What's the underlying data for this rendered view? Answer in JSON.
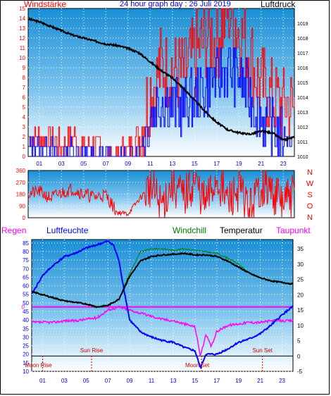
{
  "chart_data": [
    {
      "type": "line",
      "title": "24 hour graph day : 26 Juli 2019",
      "left_axis_label": "Windstärke",
      "right_axis_label": "Luftdruck",
      "x_ticks": [
        "01",
        "03",
        "05",
        "07",
        "09",
        "11",
        "13",
        "15",
        "17",
        "19",
        "21",
        "23"
      ],
      "left_ylim": [
        0,
        15
      ],
      "left_ticks": [
        0,
        1,
        2,
        3,
        4,
        5,
        6,
        7,
        8,
        9,
        10,
        11,
        12,
        13,
        14,
        15
      ],
      "right_ylim": [
        1010,
        1020
      ],
      "right_ticks": [
        1010,
        1011,
        1012,
        1013,
        1014,
        1015,
        1016,
        1017,
        1018,
        1019
      ],
      "series": [
        {
          "name": "Luftdruck",
          "color": "#000000",
          "axis": "right",
          "x": [
            0,
            1,
            2,
            3,
            4,
            5,
            6,
            7,
            8,
            9,
            10,
            11,
            12,
            13,
            14,
            15,
            16,
            17,
            18,
            19,
            20,
            21,
            22,
            23,
            24
          ],
          "values": [
            1019.3,
            1019.1,
            1018.8,
            1018.5,
            1018.2,
            1018.0,
            1017.8,
            1017.6,
            1017.5,
            1017.3,
            1017.0,
            1016.4,
            1015.8,
            1015.3,
            1014.6,
            1013.8,
            1013.0,
            1012.3,
            1011.8,
            1011.6,
            1011.5,
            1011.7,
            1011.6,
            1011.1,
            1011.3
          ]
        },
        {
          "name": "Böen",
          "color": "#ff0000",
          "axis": "left",
          "x": [
            0,
            1,
            2,
            3,
            4,
            5,
            6,
            7,
            8,
            9,
            10,
            11,
            12,
            13,
            14,
            15,
            16,
            17,
            18,
            19,
            20,
            21,
            22,
            23,
            24
          ],
          "values": [
            2,
            2,
            2,
            1,
            2,
            1,
            1,
            0,
            0,
            1,
            2,
            7,
            9,
            9,
            8,
            10,
            12,
            12,
            15,
            13,
            10,
            7,
            6,
            5,
            5
          ]
        },
        {
          "name": "Wind",
          "color": "#0000ff",
          "axis": "left",
          "x": [
            0,
            1,
            2,
            3,
            4,
            5,
            6,
            7,
            8,
            9,
            10,
            11,
            12,
            13,
            14,
            15,
            16,
            17,
            18,
            19,
            20,
            21,
            22,
            23,
            24
          ],
          "values": [
            1,
            1,
            1,
            0,
            1,
            0,
            0,
            0,
            0,
            0,
            1,
            4,
            6,
            5,
            5,
            6,
            7,
            8,
            9,
            8,
            6,
            4,
            3,
            2,
            2
          ]
        }
      ]
    },
    {
      "type": "line",
      "left_ylim": [
        0,
        360
      ],
      "left_ticks": [
        0,
        90,
        180,
        270,
        360
      ],
      "direction_labels": [
        "N",
        "W",
        "S",
        "O",
        "N"
      ],
      "series": [
        {
          "name": "Windrichtung",
          "color": "#ff0000",
          "x": [
            0,
            1,
            2,
            3,
            4,
            5,
            6,
            7,
            8,
            9,
            10,
            11,
            12,
            13,
            14,
            15,
            16,
            17,
            18,
            19,
            20,
            21,
            22,
            23,
            24
          ],
          "values": [
            180,
            200,
            150,
            190,
            220,
            180,
            160,
            175,
            40,
            30,
            140,
            240,
            90,
            260,
            150,
            280,
            100,
            300,
            120,
            220,
            60,
            250,
            200,
            110,
            180
          ]
        }
      ]
    },
    {
      "type": "line",
      "legend": [
        "Regen",
        "Luftfeuchte",
        "Windchill",
        "Temperatur",
        "Taupunkt"
      ],
      "legend_colors": [
        "#ff00ff",
        "#0000ff",
        "#008000",
        "#000000",
        "#ff00ff"
      ],
      "x_ticks": [
        "01",
        "03",
        "05",
        "07",
        "09",
        "11",
        "13",
        "15",
        "17",
        "19",
        "21",
        "23"
      ],
      "left_ylim": [
        10,
        87
      ],
      "left_ticks": [
        10,
        15,
        20,
        25,
        30,
        35,
        40,
        45,
        50,
        55,
        60,
        65,
        70,
        75,
        80,
        85
      ],
      "regen_marker": "0",
      "right_ylim": [
        -5,
        38
      ],
      "right_ticks": [
        -5,
        0,
        5,
        10,
        15,
        20,
        25,
        30,
        35
      ],
      "annotations": [
        {
          "text": "Sun Rise",
          "x": 5.5
        },
        {
          "text": "Sun Set",
          "x": 21.2
        },
        {
          "text": "Moon Rise",
          "x": 1.0
        },
        {
          "text": "Moon Set",
          "x": 15.6
        }
      ],
      "series": [
        {
          "name": "Luftfeuchte",
          "color": "#0000ff",
          "axis": "left",
          "x": [
            0,
            1,
            2,
            3,
            4,
            5,
            6,
            7,
            7.5,
            8,
            8.5,
            9,
            10,
            11,
            12,
            13,
            14,
            15,
            15.5,
            16,
            17,
            18,
            19,
            20,
            21,
            22,
            23,
            24
          ],
          "values": [
            55,
            66,
            72,
            77,
            79,
            82,
            84,
            86,
            84,
            75,
            57,
            40,
            33,
            30,
            28,
            27,
            24,
            22,
            12,
            20,
            20,
            23,
            27,
            29,
            32,
            37,
            43,
            48
          ]
        },
        {
          "name": "Temperatur",
          "color": "#000000",
          "axis": "right",
          "x": [
            0,
            1,
            2,
            3,
            4,
            5,
            6,
            7,
            8,
            9,
            10,
            11,
            12,
            13,
            14,
            15,
            16,
            17,
            18,
            19,
            20,
            21,
            22,
            23,
            24
          ],
          "values": [
            21,
            20,
            19,
            18,
            17.5,
            17,
            16,
            16.5,
            18.5,
            26,
            31,
            32.5,
            33,
            33.2,
            33.5,
            33,
            33,
            32.5,
            31,
            29,
            27,
            25.5,
            24.5,
            24,
            23.5
          ]
        },
        {
          "name": "Windchill",
          "color": "#008000",
          "axis": "right",
          "x": [
            0,
            1,
            2,
            3,
            4,
            5,
            6,
            7,
            8,
            9,
            10,
            11,
            12,
            13,
            14,
            15,
            16,
            17,
            18,
            19,
            20,
            21,
            22,
            23,
            24
          ],
          "values": [
            21,
            20,
            19,
            18,
            17.5,
            17,
            16,
            16.5,
            18.5,
            27,
            34,
            35,
            35,
            34.5,
            35,
            34.5,
            34,
            33.5,
            32,
            30,
            27,
            25.5,
            24.5,
            24,
            23.5
          ]
        },
        {
          "name": "Taupunkt",
          "color": "#ff00ff",
          "axis": "right",
          "x": [
            0,
            1,
            2,
            3,
            4,
            5,
            6,
            7,
            8,
            9,
            10,
            11,
            12,
            13,
            14,
            15,
            15.5,
            16,
            16.5,
            17,
            18,
            19,
            20,
            21,
            22,
            23,
            24
          ],
          "values": [
            11,
            11,
            11,
            11.5,
            11.5,
            12,
            12.5,
            15,
            16,
            15,
            14,
            13,
            12,
            11.5,
            10.5,
            9.5,
            0,
            7,
            3,
            8,
            10,
            10.5,
            11,
            11,
            11.5,
            11.5,
            11.5
          ]
        },
        {
          "name": "Regen",
          "color": "#ff00ff",
          "axis": "left",
          "x": [
            0,
            24
          ],
          "values": [
            0,
            0
          ]
        }
      ]
    }
  ]
}
